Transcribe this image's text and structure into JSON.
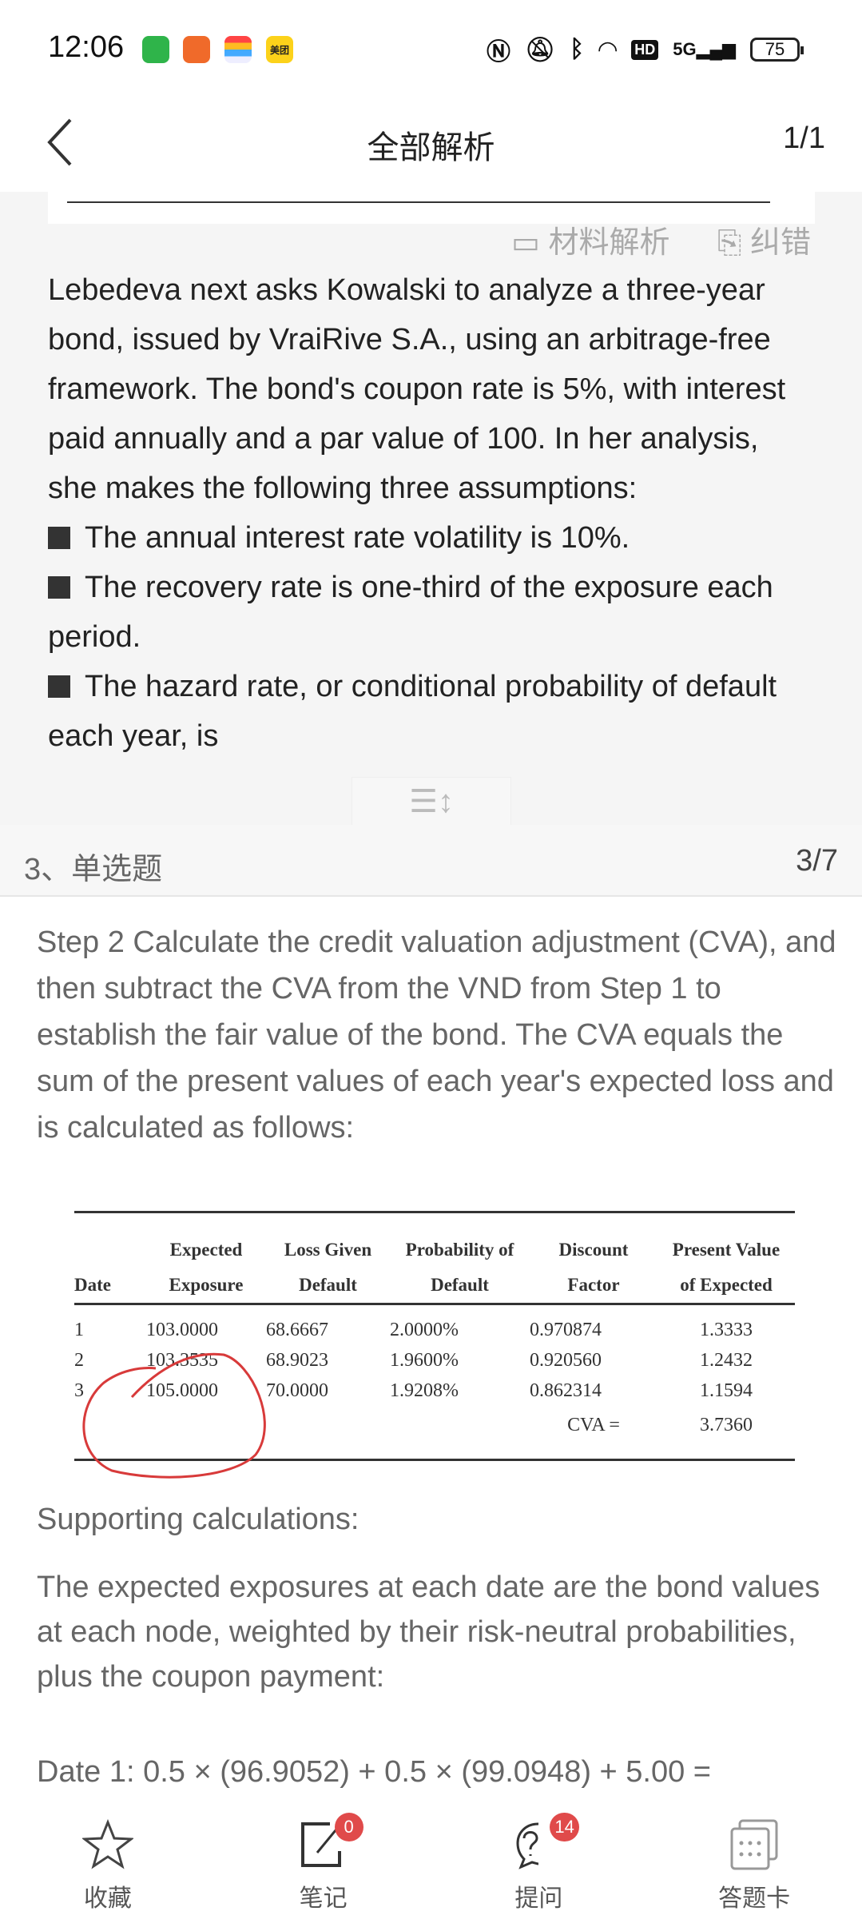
{
  "status_bar": {
    "time": "12:06",
    "app_icons": [
      "messages",
      "app-orange",
      "wallet",
      "meituan"
    ],
    "meituan_label": "美团",
    "battery": "75",
    "network": "5G"
  },
  "header": {
    "title": "全部解析",
    "pager": "1/1"
  },
  "passage": {
    "intro": "Lebedeva next asks Kowalski to analyze a three-year bond, issued by VraiRive S.A., using an arbitrage-free framework. The bond's coupon rate is 5%, with interest paid annually and a par value of 100. In her analysis, she makes the following three assumptions:",
    "bullets": [
      "The annual interest rate volatility is 10%.",
      "The recovery rate is one-third of the exposure each period.",
      "The hazard rate, or conditional probability of default each year, is"
    ],
    "overlay_material": "材料解析",
    "overlay_error": "纠错"
  },
  "question": {
    "type": "3、单选题",
    "number": "3/7"
  },
  "answer": {
    "step2": "Step 2 Calculate the credit valuation adjustment (CVA), and then subtract the CVA from the VND from Step 1 to establish the fair value of the bond. The CVA equals the sum of the present values of each year's expected loss and is calculated as follows:",
    "table": {
      "headers": [
        [
          "",
          "Date"
        ],
        [
          "Expected",
          "Exposure"
        ],
        [
          "Loss Given",
          "Default"
        ],
        [
          "Probability of",
          "Default"
        ],
        [
          "Discount",
          "Factor"
        ],
        [
          "Present Value",
          "of Expected"
        ]
      ],
      "rows": [
        [
          "1",
          "103.0000",
          "68.6667",
          "2.0000%",
          "0.970874",
          "1.3333"
        ],
        [
          "2",
          "103.3535",
          "68.9023",
          "1.9600%",
          "0.920560",
          "1.2432"
        ],
        [
          "3",
          "105.0000",
          "70.0000",
          "1.9208%",
          "0.862314",
          "1.1594"
        ]
      ],
      "cva_label": "CVA =",
      "cva_value": "3.7360"
    },
    "supporting": "Supporting calculations:",
    "para": "The expected exposures at each date are the bond values at each node, weighted by their risk-neutral probabilities, plus the coupon payment:",
    "date1": "Date 1: 0.5 × (96.9052) + 0.5 × (99.0948) + 5.00 ="
  },
  "nav": [
    {
      "label": "收藏",
      "icon": "star"
    },
    {
      "label": "笔记",
      "icon": "note",
      "badge": "0"
    },
    {
      "label": "提问",
      "icon": "question",
      "badge": "14"
    },
    {
      "label": "答题卡",
      "icon": "answer-card"
    }
  ],
  "colors": {
    "badge": "#e04a4a",
    "annotation": "#d83a3a"
  }
}
